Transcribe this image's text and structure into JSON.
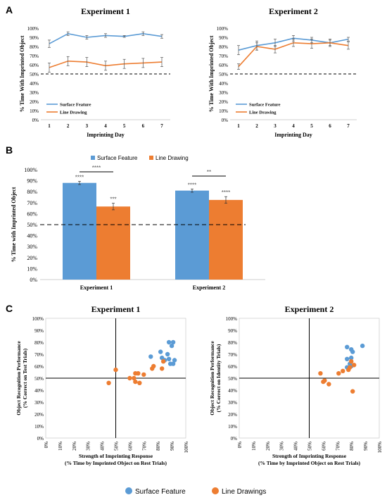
{
  "panel_labels": [
    "A",
    "B",
    "C"
  ],
  "colors": {
    "surface": "#5b9bd5",
    "line": "#ed7d31",
    "dashed": "#000000",
    "axis": "#bfbfbf"
  },
  "chart_data": [
    {
      "id": "A1",
      "type": "line",
      "title": "Experiment 1",
      "xlabel": "Imprinting Day",
      "ylabel": "% Time With Imprinted Object",
      "x": [
        1,
        2,
        3,
        4,
        5,
        6,
        7
      ],
      "ylim": [
        0,
        100
      ],
      "yticks": [
        "0%",
        "10%",
        "20%",
        "30%",
        "40%",
        "50%",
        "60%",
        "70%",
        "80%",
        "90%",
        "100%"
      ],
      "reference_line": 50,
      "legend_position": "bottom-left",
      "series": [
        {
          "name": "Surface Feature",
          "values": [
            83,
            94,
            90,
            92,
            91,
            94,
            91
          ],
          "err": [
            4,
            2,
            2,
            2,
            1,
            2,
            2
          ]
        },
        {
          "name": "Line Drawing",
          "values": [
            57,
            64,
            63,
            59,
            61,
            62,
            63
          ],
          "err": [
            5,
            5,
            5,
            5,
            5,
            5,
            5
          ]
        }
      ]
    },
    {
      "id": "A2",
      "type": "line",
      "title": "Experiment 2",
      "xlabel": "Imprinting Day",
      "ylabel": "% Time With Imprinted Object",
      "x": [
        1,
        2,
        3,
        4,
        5,
        6,
        7
      ],
      "ylim": [
        0,
        100
      ],
      "yticks": [
        "0%",
        "10%",
        "20%",
        "30%",
        "40%",
        "50%",
        "60%",
        "70%",
        "80%",
        "90%",
        "100%"
      ],
      "reference_line": 50,
      "legend_position": "bottom-left",
      "series": [
        {
          "name": "Surface Feature",
          "values": [
            76,
            81,
            84,
            89,
            87,
            84,
            88
          ],
          "err": [
            5,
            5,
            4,
            3,
            3,
            3,
            2
          ]
        },
        {
          "name": "Line Drawing",
          "values": [
            58,
            80,
            77,
            84,
            83,
            84,
            81
          ],
          "err": [
            3,
            4,
            4,
            4,
            5,
            4,
            4
          ]
        }
      ]
    },
    {
      "id": "B",
      "type": "bar",
      "categories": [
        "Experiment 1",
        "Experiment 2"
      ],
      "ylabel": "% Time with Imprinted Object",
      "ylim": [
        0,
        100
      ],
      "yticks": [
        "0%",
        "10%",
        "20%",
        "30%",
        "40%",
        "50%",
        "60%",
        "70%",
        "80%",
        "90%",
        "100%"
      ],
      "reference_line": 50,
      "legend_position": "top",
      "series": [
        {
          "name": "Surface Feature",
          "values": [
            88,
            81
          ],
          "err": [
            1.5,
            1.5
          ],
          "stars": [
            "****",
            "****"
          ]
        },
        {
          "name": "Line Drawing",
          "values": [
            66.5,
            72.5
          ],
          "err": [
            3,
            3
          ],
          "stars": [
            "***",
            "****"
          ]
        }
      ],
      "comparisons": [
        "****",
        "**"
      ]
    },
    {
      "id": "C1",
      "type": "scatter",
      "title": "Experiment 1",
      "xlabel": [
        "Strength of Imprinting Response",
        "(% Time by Imprinted Object on Rest Trials)"
      ],
      "ylabel": [
        "Object Recognition Performance",
        "(% Correct on Test Trials)"
      ],
      "xlim": [
        0,
        100
      ],
      "ylim": [
        0,
        100
      ],
      "ticks": [
        "0%",
        "10%",
        "20%",
        "30%",
        "40%",
        "50%",
        "60%",
        "70%",
        "80%",
        "90%",
        "100%"
      ],
      "crosshair": [
        50,
        50
      ],
      "series": [
        {
          "name": "Surface Feature",
          "points": [
            [
              88,
              80
            ],
            [
              91,
              80
            ],
            [
              90,
              77
            ],
            [
              82,
              72
            ],
            [
              87,
              70
            ],
            [
              75,
              68
            ],
            [
              83,
              67
            ],
            [
              88,
              66
            ],
            [
              92,
              65
            ],
            [
              85,
              65
            ],
            [
              89,
              62
            ],
            [
              91,
              62
            ]
          ]
        },
        {
          "name": "Line Drawings",
          "points": [
            [
              84,
              64
            ],
            [
              50,
              57
            ],
            [
              77,
              60
            ],
            [
              83,
              58
            ],
            [
              76,
              58
            ],
            [
              64,
              54
            ],
            [
              66,
              54
            ],
            [
              70,
              53
            ],
            [
              63,
              50
            ],
            [
              60,
              50
            ],
            [
              64,
              47
            ],
            [
              67,
              46
            ],
            [
              45,
              46
            ]
          ]
        }
      ]
    },
    {
      "id": "C2",
      "type": "scatter",
      "title": "Experiment 2",
      "xlabel": [
        "Strength of Imprinting Response",
        "(% Time by Imprinted Object on Rest Trials)"
      ],
      "ylabel": [
        "Object Recognition Performance",
        "(% Correct on Identity Trials)"
      ],
      "xlim": [
        0,
        100
      ],
      "ylim": [
        0,
        100
      ],
      "ticks": [
        "0%",
        "10%",
        "20%",
        "30%",
        "40%",
        "50%",
        "60%",
        "70%",
        "80%",
        "90%",
        "100%"
      ],
      "crosshair": [
        50,
        50
      ],
      "series": [
        {
          "name": "Surface Feature",
          "points": [
            [
              77,
              76
            ],
            [
              88,
              77
            ],
            [
              80,
              74
            ],
            [
              81,
              72
            ],
            [
              80,
              67
            ],
            [
              77,
              66
            ],
            [
              79,
              62
            ],
            [
              80,
              60
            ],
            [
              77,
              59
            ]
          ]
        },
        {
          "name": "Line Drawings",
          "points": [
            [
              80,
              64
            ],
            [
              82,
              61
            ],
            [
              79,
              59
            ],
            [
              78,
              57
            ],
            [
              74,
              56
            ],
            [
              71,
              54
            ],
            [
              58,
              54
            ],
            [
              61,
              48
            ],
            [
              60,
              47
            ],
            [
              64,
              45
            ],
            [
              81,
              39
            ]
          ]
        }
      ]
    }
  ],
  "bottom_legend": [
    "Surface Feature",
    "Line Drawings"
  ]
}
